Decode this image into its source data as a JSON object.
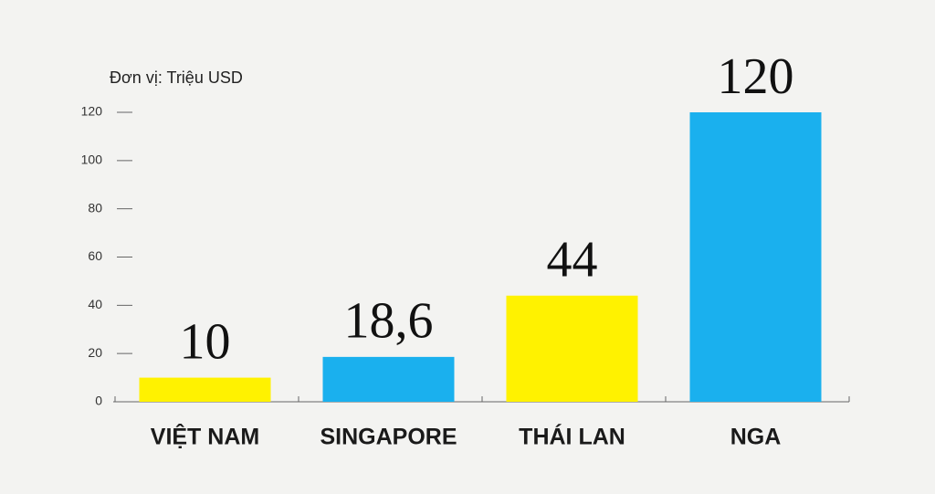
{
  "chart_data": {
    "type": "bar",
    "unit_label": "Đơn vị:  Triệu USD",
    "categories": [
      "VIỆT NAM",
      "SINGAPORE",
      "THÁI LAN",
      "NGA"
    ],
    "values": [
      10,
      18.6,
      44,
      120
    ],
    "value_labels": [
      "10",
      "18,6",
      "44",
      "120"
    ],
    "colors": [
      "#fff200",
      "#1ab0ee",
      "#fff200",
      "#1ab0ee"
    ],
    "ylim": [
      0,
      120
    ],
    "yticks": [
      0,
      20,
      40,
      60,
      80,
      100,
      120
    ]
  }
}
